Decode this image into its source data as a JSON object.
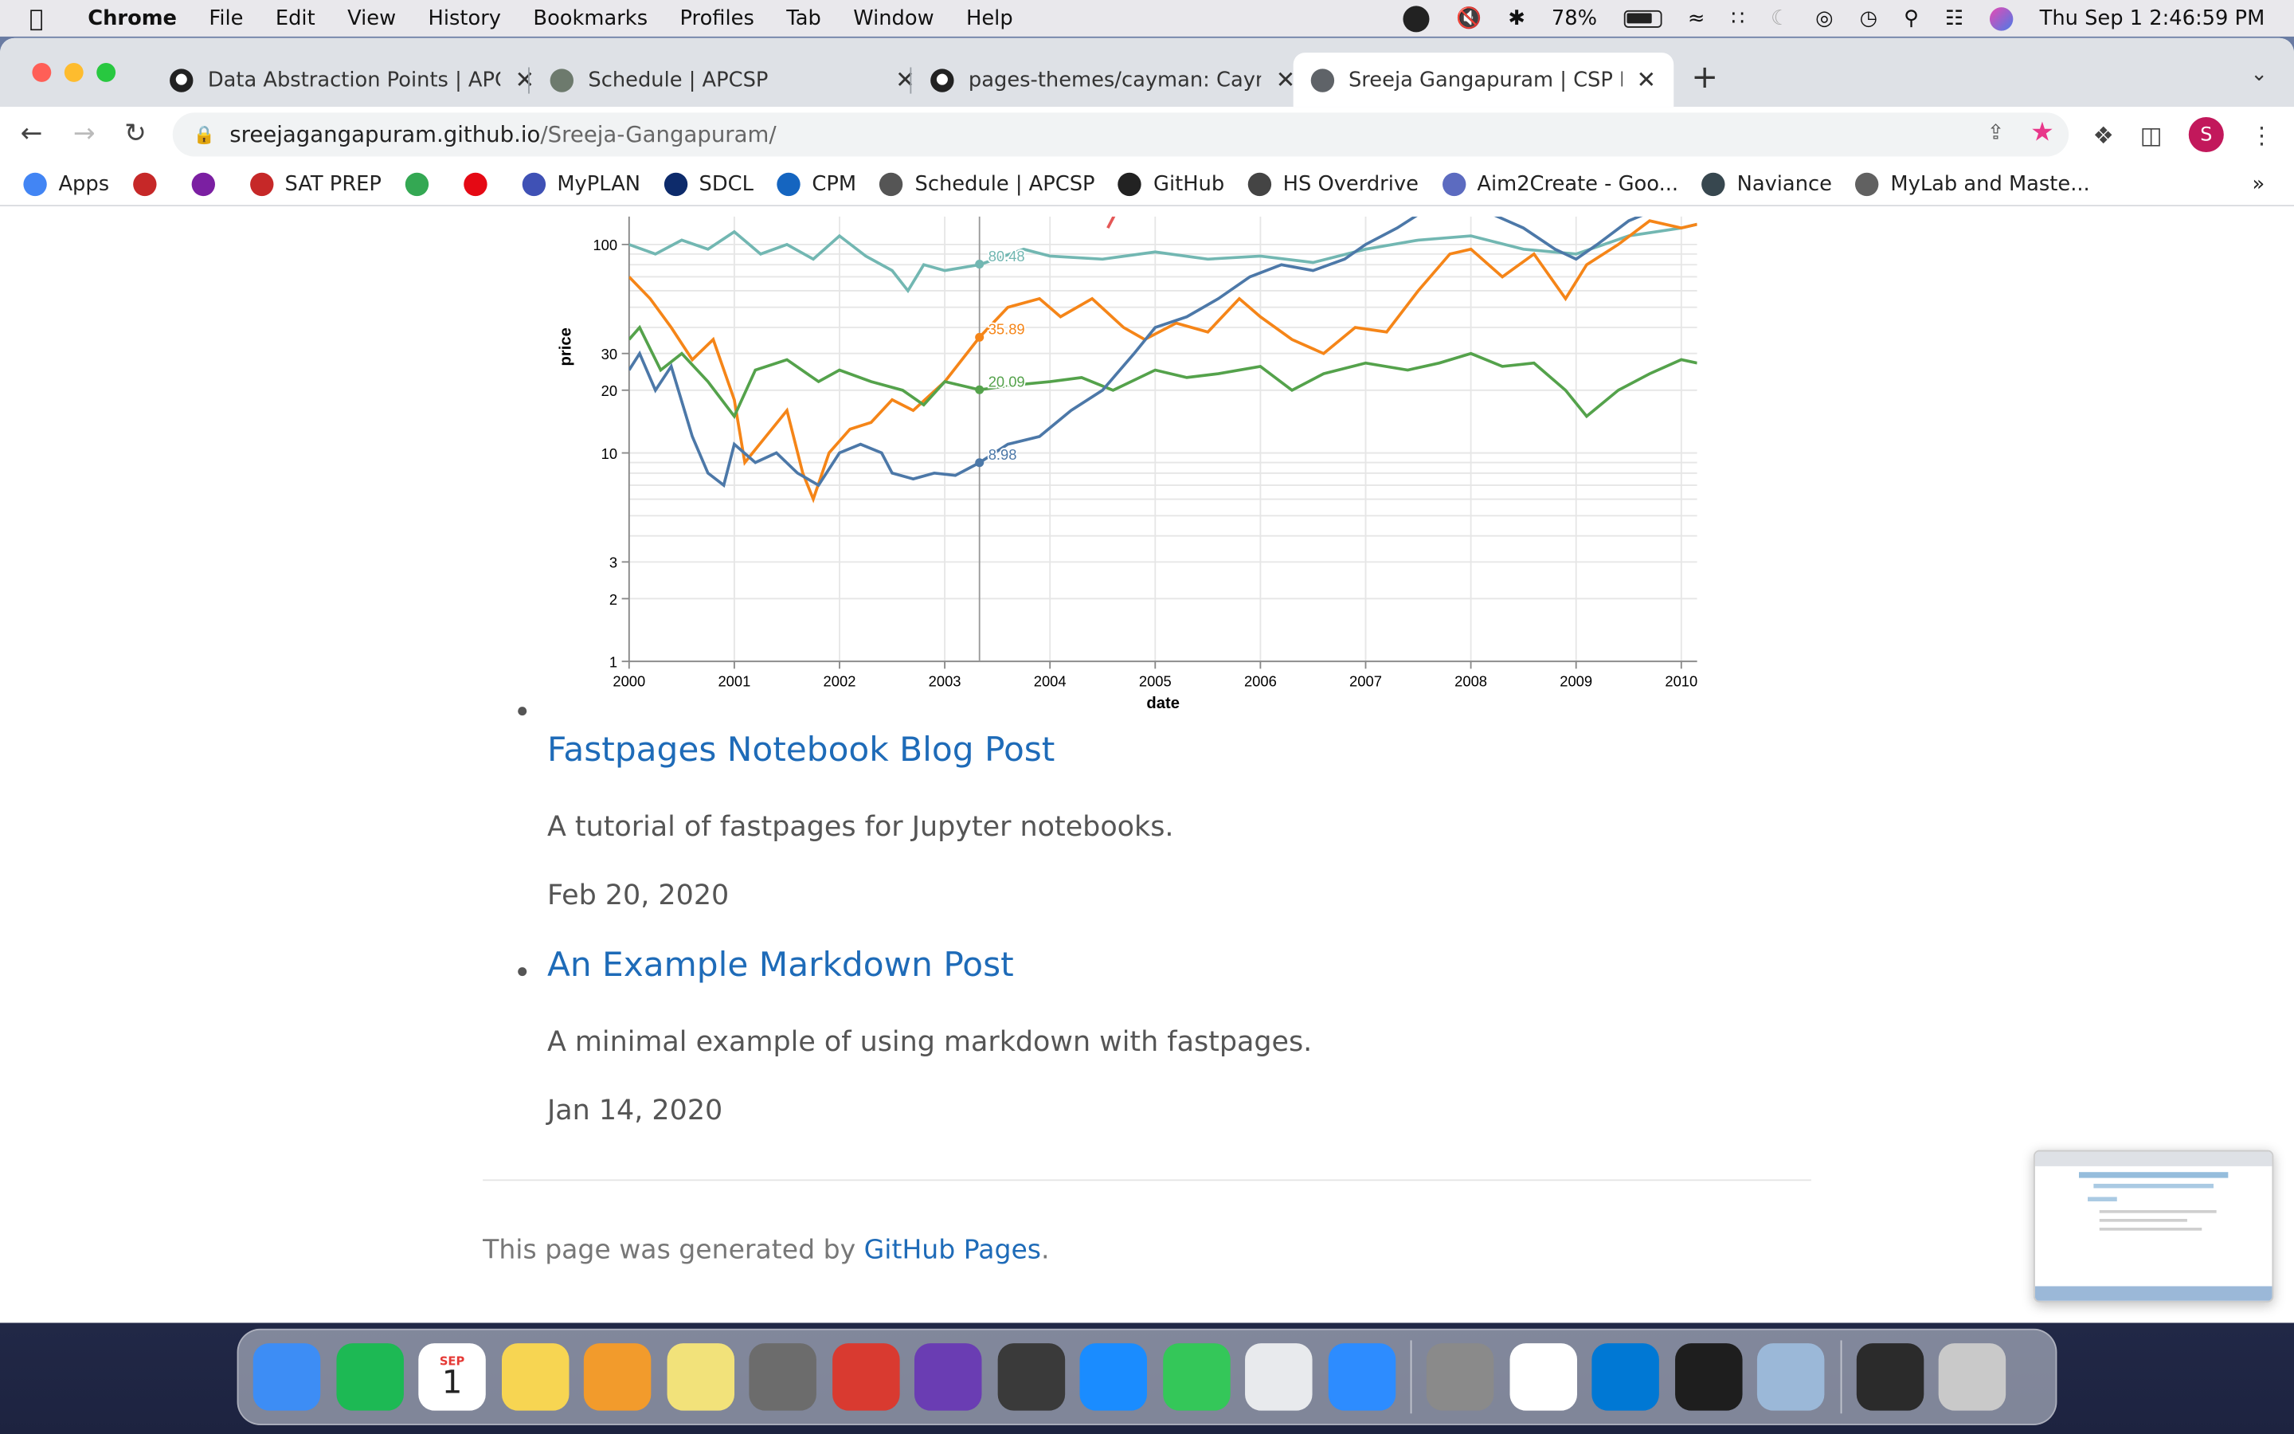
{
  "menubar": {
    "app": "Chrome",
    "items": [
      "File",
      "Edit",
      "View",
      "History",
      "Bookmarks",
      "Profiles",
      "Tab",
      "Window",
      "Help"
    ],
    "battery": "78%",
    "datetime": "Thu Sep 1  2:46:59 PM"
  },
  "tabs": [
    {
      "title": "Data Abstraction Points | APCSP",
      "icon": "github-icon"
    },
    {
      "title": "Schedule | APCSP",
      "icon": "apcsp-icon"
    },
    {
      "title": "pages-themes/cayman: Cayman",
      "icon": "github-icon"
    },
    {
      "title": "Sreeja Gangapuram | CSP Blog",
      "icon": "globe-icon",
      "active": true
    }
  ],
  "omnibox": {
    "domain": "sreejagangapuram.github.io",
    "path": "/Sreeja-Gangapuram/"
  },
  "profile_initial": "S",
  "bookmarks": [
    {
      "label": "Apps",
      "color": "#4285f4"
    },
    {
      "label": "",
      "color": "#c62828"
    },
    {
      "label": "",
      "color": "#7b1fa2"
    },
    {
      "label": "SAT PREP",
      "color": "#c62828"
    },
    {
      "label": "",
      "color": "#34a853"
    },
    {
      "label": "",
      "color": "#e50914"
    },
    {
      "label": "MyPLAN",
      "color": "#3f51b5"
    },
    {
      "label": "SDCL",
      "color": "#0d2b6b"
    },
    {
      "label": "CPM",
      "color": "#1565c0"
    },
    {
      "label": "Schedule | APCSP",
      "color": "#555555"
    },
    {
      "label": "GitHub",
      "color": "#222222"
    },
    {
      "label": "HS Overdrive",
      "color": "#444444"
    },
    {
      "label": "Aim2Create - Goo...",
      "color": "#5c6bc0"
    },
    {
      "label": "Naviance",
      "color": "#37474f"
    },
    {
      "label": "MyLab and Maste...",
      "color": "#616161"
    }
  ],
  "chart_data": {
    "type": "line",
    "xlabel": "date",
    "ylabel": "price",
    "yscale": "log",
    "ylim": [
      1,
      150
    ],
    "x_ticks": [
      "2000",
      "2001",
      "2002",
      "2003",
      "2004",
      "2005",
      "2006",
      "2007",
      "2008",
      "2009",
      "2010"
    ],
    "y_ticks": [
      "1",
      "2",
      "3",
      "10",
      "20",
      "30",
      "100"
    ],
    "rule_x": "2003-04",
    "tooltip_labels": [
      {
        "series_color": "#72b7b2",
        "value": "80.48"
      },
      {
        "series_color": "#f58518",
        "value": "35.89"
      },
      {
        "series_color": "#54a24b",
        "value": "20.09"
      },
      {
        "series_color": "#4c78a8",
        "value": "8.98"
      }
    ],
    "series": [
      {
        "color": "#72b7b2",
        "values": [
          [
            2000.0,
            100
          ],
          [
            2000.25,
            90
          ],
          [
            2000.5,
            105
          ],
          [
            2000.75,
            95
          ],
          [
            2001.0,
            115
          ],
          [
            2001.25,
            90
          ],
          [
            2001.5,
            100
          ],
          [
            2001.75,
            85
          ],
          [
            2002.0,
            110
          ],
          [
            2002.25,
            88
          ],
          [
            2002.5,
            75
          ],
          [
            2002.65,
            60
          ],
          [
            2002.8,
            80
          ],
          [
            2003.0,
            75
          ],
          [
            2003.33,
            80
          ],
          [
            2003.75,
            95
          ],
          [
            2004.0,
            88
          ],
          [
            2004.5,
            85
          ],
          [
            2005.0,
            92
          ],
          [
            2005.5,
            85
          ],
          [
            2006.0,
            88
          ],
          [
            2006.5,
            82
          ],
          [
            2007.0,
            95
          ],
          [
            2007.5,
            105
          ],
          [
            2008.0,
            110
          ],
          [
            2008.5,
            95
          ],
          [
            2009.0,
            90
          ],
          [
            2009.5,
            110
          ],
          [
            2010.0,
            120
          ],
          [
            2010.15,
            125
          ]
        ]
      },
      {
        "color": "#f58518",
        "values": [
          [
            2000.0,
            70
          ],
          [
            2000.2,
            55
          ],
          [
            2000.4,
            40
          ],
          [
            2000.6,
            28
          ],
          [
            2000.8,
            35
          ],
          [
            2001.0,
            18
          ],
          [
            2001.1,
            9
          ],
          [
            2001.3,
            12
          ],
          [
            2001.5,
            16
          ],
          [
            2001.65,
            8
          ],
          [
            2001.75,
            6
          ],
          [
            2001.9,
            10
          ],
          [
            2002.1,
            13
          ],
          [
            2002.3,
            14
          ],
          [
            2002.5,
            18
          ],
          [
            2002.7,
            16
          ],
          [
            2003.0,
            22
          ],
          [
            2003.33,
            35.89
          ],
          [
            2003.6,
            50
          ],
          [
            2003.9,
            55
          ],
          [
            2004.1,
            45
          ],
          [
            2004.4,
            55
          ],
          [
            2004.7,
            40
          ],
          [
            2004.9,
            35
          ],
          [
            2005.2,
            42
          ],
          [
            2005.5,
            38
          ],
          [
            2005.8,
            55
          ],
          [
            2006.0,
            45
          ],
          [
            2006.3,
            35
          ],
          [
            2006.6,
            30
          ],
          [
            2006.9,
            40
          ],
          [
            2007.2,
            38
          ],
          [
            2007.5,
            60
          ],
          [
            2007.8,
            90
          ],
          [
            2008.0,
            95
          ],
          [
            2008.3,
            70
          ],
          [
            2008.6,
            90
          ],
          [
            2008.9,
            55
          ],
          [
            2009.1,
            80
          ],
          [
            2009.4,
            100
          ],
          [
            2009.7,
            130
          ],
          [
            2010.0,
            120
          ],
          [
            2010.15,
            125
          ]
        ]
      },
      {
        "color": "#54a24b",
        "values": [
          [
            2000.0,
            35
          ],
          [
            2000.1,
            40
          ],
          [
            2000.3,
            25
          ],
          [
            2000.5,
            30
          ],
          [
            2000.75,
            22
          ],
          [
            2001.0,
            15
          ],
          [
            2001.2,
            25
          ],
          [
            2001.5,
            28
          ],
          [
            2001.8,
            22
          ],
          [
            2002.0,
            25
          ],
          [
            2002.3,
            22
          ],
          [
            2002.6,
            20
          ],
          [
            2002.8,
            17
          ],
          [
            2003.0,
            22
          ],
          [
            2003.33,
            20.09
          ],
          [
            2003.6,
            21
          ],
          [
            2004.0,
            22
          ],
          [
            2004.3,
            23
          ],
          [
            2004.6,
            20
          ],
          [
            2005.0,
            25
          ],
          [
            2005.3,
            23
          ],
          [
            2005.6,
            24
          ],
          [
            2006.0,
            26
          ],
          [
            2006.3,
            20
          ],
          [
            2006.6,
            24
          ],
          [
            2007.0,
            27
          ],
          [
            2007.4,
            25
          ],
          [
            2007.7,
            27
          ],
          [
            2008.0,
            30
          ],
          [
            2008.3,
            26
          ],
          [
            2008.6,
            27
          ],
          [
            2008.9,
            20
          ],
          [
            2009.1,
            15
          ],
          [
            2009.4,
            20
          ],
          [
            2009.7,
            24
          ],
          [
            2010.0,
            28
          ],
          [
            2010.15,
            27
          ]
        ]
      },
      {
        "color": "#4c78a8",
        "values": [
          [
            2000.0,
            25
          ],
          [
            2000.1,
            30
          ],
          [
            2000.25,
            20
          ],
          [
            2000.4,
            26
          ],
          [
            2000.6,
            12
          ],
          [
            2000.75,
            8
          ],
          [
            2000.9,
            7
          ],
          [
            2001.0,
            11
          ],
          [
            2001.2,
            9
          ],
          [
            2001.4,
            10
          ],
          [
            2001.6,
            8
          ],
          [
            2001.8,
            7
          ],
          [
            2002.0,
            10
          ],
          [
            2002.2,
            11
          ],
          [
            2002.4,
            10
          ],
          [
            2002.5,
            8
          ],
          [
            2002.7,
            7.5
          ],
          [
            2002.9,
            8
          ],
          [
            2003.1,
            7.8
          ],
          [
            2003.33,
            8.98
          ],
          [
            2003.6,
            11
          ],
          [
            2003.9,
            12
          ],
          [
            2004.2,
            16
          ],
          [
            2004.5,
            20
          ],
          [
            2004.8,
            30
          ],
          [
            2005.0,
            40
          ],
          [
            2005.3,
            45
          ],
          [
            2005.6,
            55
          ],
          [
            2005.9,
            70
          ],
          [
            2006.2,
            80
          ],
          [
            2006.5,
            75
          ],
          [
            2006.8,
            85
          ],
          [
            2007.0,
            100
          ],
          [
            2007.3,
            120
          ],
          [
            2007.6,
            150
          ],
          [
            2007.9,
            160
          ],
          [
            2008.2,
            140
          ],
          [
            2008.5,
            120
          ],
          [
            2008.8,
            95
          ],
          [
            2009.0,
            85
          ],
          [
            2009.2,
            100
          ],
          [
            2009.5,
            130
          ],
          [
            2009.8,
            150
          ]
        ]
      },
      {
        "color": "#e45756",
        "values": [
          [
            2004.55,
            120
          ],
          [
            2004.65,
            150
          ]
        ]
      }
    ]
  },
  "posts": [
    {
      "title": "Fastpages Notebook Blog Post",
      "desc": "A tutorial of fastpages for Jupyter notebooks.",
      "date": "Feb 20, 2020"
    },
    {
      "title": "An Example Markdown Post",
      "desc": "A minimal example of using markdown with fastpages.",
      "date": "Jan 14, 2020"
    }
  ],
  "footer": {
    "prefix": "This page was generated by",
    "link": "GitHub Pages",
    "suffix": "."
  },
  "dock": [
    {
      "name": "finder-icon",
      "color": "#3d8df5"
    },
    {
      "name": "spotify-icon",
      "color": "#1db954"
    },
    {
      "name": "calendar-icon",
      "color": "#ffffff"
    },
    {
      "name": "notes-icon",
      "color": "#f7d552"
    },
    {
      "name": "photos-icon",
      "color": "#f29b2c"
    },
    {
      "name": "stickies-icon",
      "color": "#f2e27a"
    },
    {
      "name": "system-preferences-icon",
      "color": "#6c6c6c"
    },
    {
      "name": "photo-booth-icon",
      "color": "#d93a30"
    },
    {
      "name": "imovie-icon",
      "color": "#6a3db3"
    },
    {
      "name": "calculator-icon",
      "color": "#3a3a3a"
    },
    {
      "name": "safari-icon",
      "color": "#1a8cff"
    },
    {
      "name": "messages-icon",
      "color": "#34c759"
    },
    {
      "name": "chrome-icon",
      "color": "#e8eaed"
    },
    {
      "name": "zoom-icon",
      "color": "#2d8cff"
    },
    {
      "name": "launchpad-icon",
      "color": "#8a8a8a"
    },
    {
      "name": "slack-icon",
      "color": "#ffffff"
    },
    {
      "name": "vscode-icon",
      "color": "#0078d4"
    },
    {
      "name": "terminal-icon",
      "color": "#1e1e1e"
    },
    {
      "name": "preview-icon",
      "color": "#9bb8d8"
    },
    {
      "name": "screenshot-window-icon",
      "color": "#2b2b2b"
    },
    {
      "name": "trash-icon",
      "color": "#c9c9c9"
    }
  ],
  "calendar": {
    "month": "SEP",
    "day": "1"
  }
}
